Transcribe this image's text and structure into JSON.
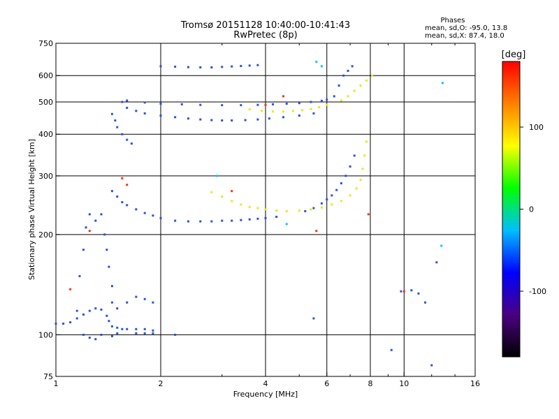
{
  "chart_data": {
    "type": "scatter",
    "title": "Tromsø 20151128 10:40:00-10:41:43",
    "subtitle": "RwPretec (8p)",
    "xlabel": "Frequency [MHz]",
    "ylabel": "Stationary phase Virtual Height [km]",
    "x_scale": "log",
    "y_scale": "log",
    "xlim": [
      1,
      16
    ],
    "ylim": [
      75,
      750
    ],
    "xticks": [
      1,
      2,
      4,
      6,
      8,
      10,
      16
    ],
    "yticks": [
      75,
      100,
      200,
      300,
      400,
      500,
      600,
      750
    ],
    "grid_x": [
      2,
      4,
      6,
      8,
      10
    ],
    "grid_y": [
      100,
      200,
      300,
      400,
      500,
      600
    ],
    "legend_title": "Phases",
    "stats_lines": [
      "mean, sd,O: -95.0, 13.8",
      "mean, sd,X: 87.4, 18.0"
    ],
    "colorbar": {
      "label": "[deg]",
      "range": [
        -180,
        180
      ],
      "ticks": [
        100,
        0,
        -100
      ],
      "colormap": [
        "#000000",
        "#4b0082",
        "#0000ff",
        "#00bfff",
        "#00ff00",
        "#ffff00",
        "#ff8000",
        "#ff0000"
      ]
    },
    "series": [
      {
        "color": "#2a52d6",
        "points": [
          [
            1.0,
            108
          ],
          [
            1.05,
            108
          ],
          [
            1.1,
            109
          ],
          [
            1.15,
            112
          ],
          [
            1.2,
            115
          ],
          [
            1.25,
            118
          ],
          [
            1.3,
            120
          ],
          [
            1.35,
            119
          ],
          [
            1.4,
            114
          ],
          [
            1.42,
            110
          ],
          [
            1.45,
            106
          ],
          [
            1.5,
            105
          ],
          [
            1.55,
            104
          ],
          [
            1.6,
            104
          ],
          [
            1.7,
            104
          ],
          [
            1.8,
            104
          ],
          [
            1.9,
            103
          ]
        ]
      },
      {
        "color": "#2a52d6",
        "points": [
          [
            1.15,
            118
          ],
          [
            1.17,
            150
          ],
          [
            1.2,
            180
          ],
          [
            1.22,
            210
          ],
          [
            1.25,
            230
          ],
          [
            1.3,
            220
          ],
          [
            1.35,
            230
          ],
          [
            1.38,
            200
          ],
          [
            1.4,
            180
          ],
          [
            1.42,
            160
          ],
          [
            1.45,
            140
          ],
          [
            1.45,
            125
          ],
          [
            1.5,
            120
          ],
          [
            1.6,
            125
          ],
          [
            1.7,
            130
          ],
          [
            1.8,
            128
          ],
          [
            1.9,
            125
          ]
        ]
      },
      {
        "color": "#2a52d6",
        "points": [
          [
            1.45,
            270
          ],
          [
            1.5,
            260
          ],
          [
            1.55,
            250
          ],
          [
            1.6,
            245
          ],
          [
            1.7,
            238
          ],
          [
            1.8,
            232
          ],
          [
            1.9,
            228
          ],
          [
            2.0,
            224
          ],
          [
            2.2,
            220
          ],
          [
            2.4,
            219
          ],
          [
            2.6,
            219
          ],
          [
            2.8,
            219
          ],
          [
            3.0,
            220
          ],
          [
            3.2,
            220
          ],
          [
            3.4,
            221
          ],
          [
            3.6,
            222
          ],
          [
            3.8,
            223
          ],
          [
            4.0,
            224
          ],
          [
            4.3,
            226
          ]
        ]
      },
      {
        "color": "#2a52d6",
        "points": [
          [
            1.45,
            460
          ],
          [
            1.48,
            440
          ],
          [
            1.5,
            420
          ],
          [
            1.55,
            400
          ],
          [
            1.6,
            385
          ],
          [
            1.65,
            375
          ]
        ]
      },
      {
        "color": "#2a52d6",
        "points": [
          [
            1.55,
            500
          ],
          [
            1.6,
            480
          ],
          [
            1.7,
            470
          ],
          [
            1.8,
            462
          ],
          [
            2.0,
            455
          ],
          [
            2.2,
            450
          ],
          [
            2.4,
            446
          ],
          [
            2.6,
            443
          ],
          [
            2.8,
            441
          ],
          [
            3.0,
            440
          ],
          [
            3.2,
            440
          ],
          [
            3.5,
            441
          ],
          [
            3.8,
            443
          ],
          [
            4.1,
            446
          ],
          [
            4.5,
            450
          ],
          [
            5.0,
            455
          ],
          [
            5.5,
            462
          ]
        ]
      },
      {
        "color": "#2a52d6",
        "points": [
          [
            1.6,
            505
          ],
          [
            1.8,
            498
          ],
          [
            2.0,
            494
          ],
          [
            2.3,
            492
          ],
          [
            2.6,
            490
          ],
          [
            3.0,
            489
          ],
          [
            3.4,
            489
          ],
          [
            3.8,
            490
          ],
          [
            4.2,
            492
          ],
          [
            4.6,
            494
          ],
          [
            5.0,
            496
          ],
          [
            5.4,
            500
          ],
          [
            5.8,
            504
          ],
          [
            6.0,
            508
          ]
        ]
      },
      {
        "color": "#2a52d6",
        "points": [
          [
            2.0,
            640
          ],
          [
            2.2,
            638
          ],
          [
            2.4,
            636
          ],
          [
            2.6,
            635
          ],
          [
            2.8,
            635
          ],
          [
            3.0,
            637
          ],
          [
            3.2,
            639
          ],
          [
            3.4,
            641
          ],
          [
            3.6,
            643
          ],
          [
            3.8,
            645
          ]
        ]
      },
      {
        "color": "#2a52d6",
        "points": [
          [
            5.2,
            235
          ],
          [
            5.5,
            240
          ],
          [
            5.8,
            248
          ],
          [
            6.0,
            255
          ],
          [
            6.2,
            262
          ],
          [
            6.4,
            272
          ],
          [
            6.6,
            285
          ],
          [
            6.8,
            300
          ],
          [
            7.0,
            320
          ],
          [
            7.2,
            345
          ]
        ]
      },
      {
        "color": "#2a52d6",
        "points": [
          [
            6.3,
            520
          ],
          [
            6.5,
            560
          ],
          [
            6.7,
            600
          ],
          [
            6.9,
            620
          ],
          [
            7.1,
            640
          ]
        ]
      },
      {
        "color": "#e8e81c",
        "points": [
          [
            2.8,
            268
          ],
          [
            3.0,
            260
          ],
          [
            3.2,
            252
          ],
          [
            3.4,
            246
          ],
          [
            3.6,
            242
          ],
          [
            3.8,
            240
          ],
          [
            4.0,
            238
          ],
          [
            4.3,
            236
          ],
          [
            4.6,
            235
          ],
          [
            5.0,
            236
          ],
          [
            5.4,
            238
          ],
          [
            5.8,
            241
          ],
          [
            6.2,
            246
          ],
          [
            6.6,
            252
          ],
          [
            7.0,
            262
          ],
          [
            7.3,
            275
          ],
          [
            7.5,
            292
          ],
          [
            7.6,
            315
          ],
          [
            7.7,
            345
          ],
          [
            7.8,
            380
          ]
        ]
      },
      {
        "color": "#e8e81c",
        "points": [
          [
            3.6,
            475
          ],
          [
            3.9,
            470
          ],
          [
            4.2,
            468
          ],
          [
            4.5,
            468
          ],
          [
            4.8,
            470
          ],
          [
            5.1,
            472
          ],
          [
            5.4,
            476
          ],
          [
            5.7,
            482
          ],
          [
            6.0,
            490
          ]
        ]
      },
      {
        "color": "#e8e81c",
        "points": [
          [
            6.6,
            505
          ],
          [
            6.9,
            520
          ],
          [
            7.2,
            540
          ],
          [
            7.5,
            560
          ],
          [
            7.8,
            580
          ],
          [
            8.1,
            600
          ]
        ]
      },
      {
        "color": "#2a52d6",
        "points": [
          [
            1.2,
            100
          ],
          [
            1.25,
            98
          ],
          [
            1.3,
            97
          ],
          [
            1.35,
            100
          ],
          [
            1.45,
            99
          ],
          [
            1.5,
            101
          ],
          [
            1.7,
            101
          ],
          [
            1.8,
            101
          ],
          [
            1.9,
            101
          ],
          [
            2.2,
            100
          ],
          [
            5.5,
            112
          ],
          [
            9.2,
            90
          ],
          [
            9.8,
            135
          ],
          [
            10.5,
            136
          ],
          [
            11.0,
            133
          ],
          [
            11.5,
            125
          ],
          [
            12.0,
            81
          ],
          [
            12.4,
            165
          ]
        ]
      },
      {
        "color": "#ff3000",
        "points": [
          [
            1.1,
            137
          ],
          [
            1.25,
            205
          ],
          [
            1.55,
            295
          ],
          [
            1.6,
            282
          ],
          [
            3.2,
            270
          ],
          [
            4.0,
            490
          ],
          [
            4.5,
            520
          ],
          [
            5.6,
            205
          ],
          [
            7.9,
            230
          ],
          [
            10.0,
            135
          ]
        ]
      },
      {
        "color": "#00c8ff",
        "points": [
          [
            2.9,
            300
          ],
          [
            4.6,
            215
          ],
          [
            5.6,
            660
          ],
          [
            5.8,
            640
          ],
          [
            12.8,
            185
          ],
          [
            12.9,
            570
          ]
        ]
      }
    ]
  }
}
